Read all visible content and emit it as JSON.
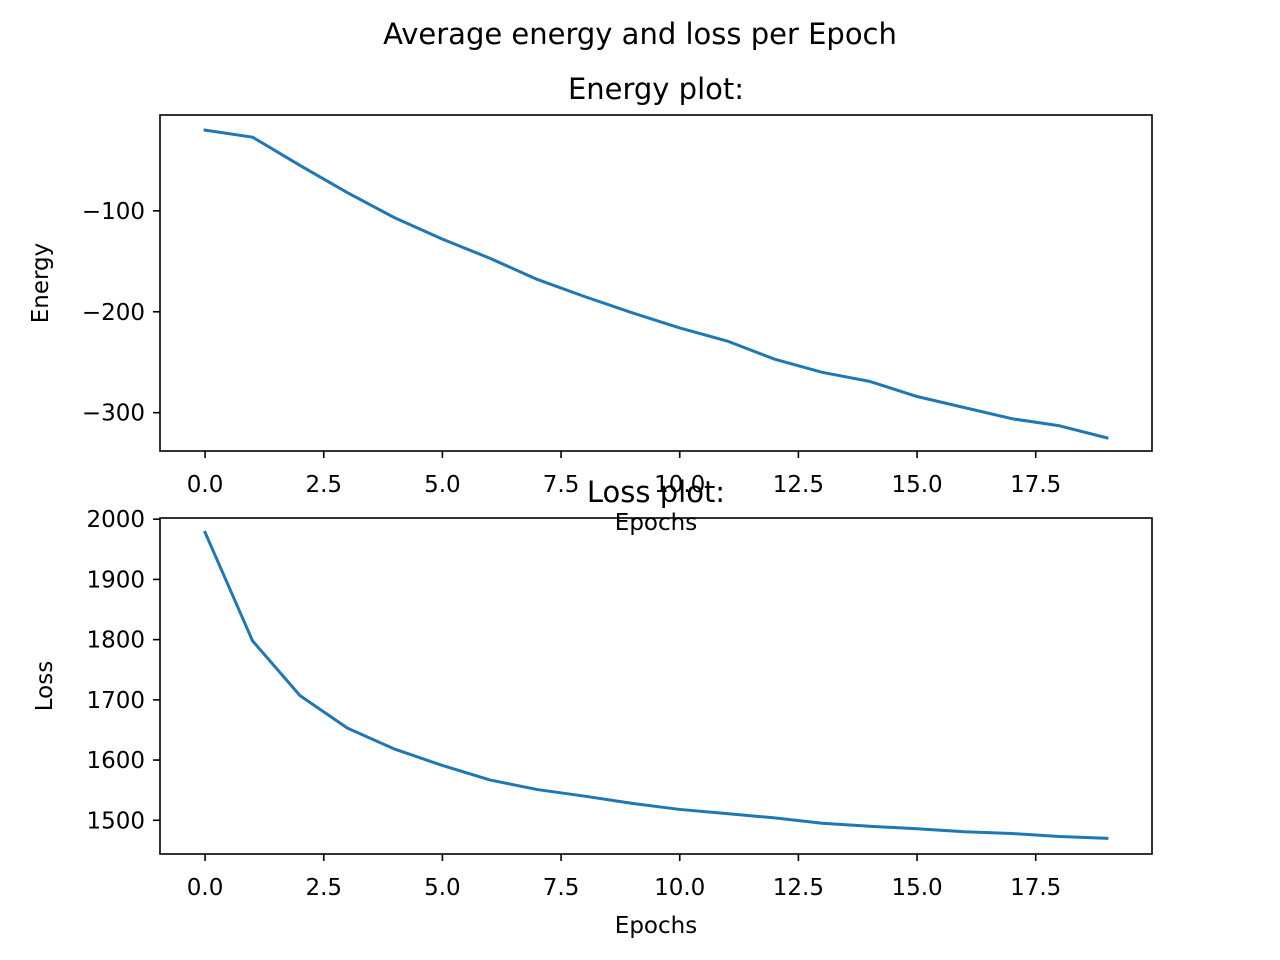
{
  "figure": {
    "suptitle": "Average energy and loss per Epoch"
  },
  "chart_data": [
    {
      "type": "line",
      "title": "Energy plot:",
      "xlabel": "Epochs",
      "ylabel": "Energy",
      "xlim": [
        -0.95,
        19.95
      ],
      "ylim": [
        -338,
        -5
      ],
      "xticks": [
        0.0,
        2.5,
        5.0,
        7.5,
        10.0,
        12.5,
        15.0,
        17.5
      ],
      "xtick_labels": [
        "0.0",
        "2.5",
        "5.0",
        "7.5",
        "10.0",
        "12.5",
        "15.0",
        "17.5"
      ],
      "yticks": [
        -100,
        -200,
        -300
      ],
      "ytick_labels": [
        "−100",
        "−200",
        "−300"
      ],
      "grid": false,
      "series": [
        {
          "color": "#1f77b4",
          "x": [
            0,
            1,
            2,
            3,
            4,
            5,
            6,
            7,
            8,
            9,
            10,
            11,
            12,
            13,
            14,
            15,
            16,
            17,
            18,
            19
          ],
          "y": [
            -20,
            -27,
            -55,
            -82,
            -107,
            -128,
            -147,
            -168,
            -185,
            -201,
            -216,
            -229,
            -247,
            -260,
            -269,
            -284,
            -295,
            -306,
            -313,
            -325
          ]
        }
      ]
    },
    {
      "type": "line",
      "title": "Loss plot:",
      "xlabel": "Epochs",
      "ylabel": "Loss",
      "xlim": [
        -0.95,
        19.95
      ],
      "ylim": [
        1444,
        2002
      ],
      "xticks": [
        0.0,
        2.5,
        5.0,
        7.5,
        10.0,
        12.5,
        15.0,
        17.5
      ],
      "xtick_labels": [
        "0.0",
        "2.5",
        "5.0",
        "7.5",
        "10.0",
        "12.5",
        "15.0",
        "17.5"
      ],
      "yticks": [
        1500,
        1600,
        1700,
        1800,
        1900,
        2000
      ],
      "ytick_labels": [
        "1500",
        "1600",
        "1700",
        "1800",
        "1900",
        "2000"
      ],
      "grid": false,
      "series": [
        {
          "color": "#1f77b4",
          "x": [
            0,
            1,
            2,
            3,
            4,
            5,
            6,
            7,
            8,
            9,
            10,
            11,
            12,
            13,
            14,
            15,
            16,
            17,
            18,
            19
          ],
          "y": [
            1978,
            1798,
            1707,
            1653,
            1618,
            1591,
            1567,
            1551,
            1540,
            1528,
            1518,
            1511,
            1504,
            1495,
            1490,
            1486,
            1481,
            1478,
            1473,
            1470
          ]
        }
      ]
    }
  ]
}
